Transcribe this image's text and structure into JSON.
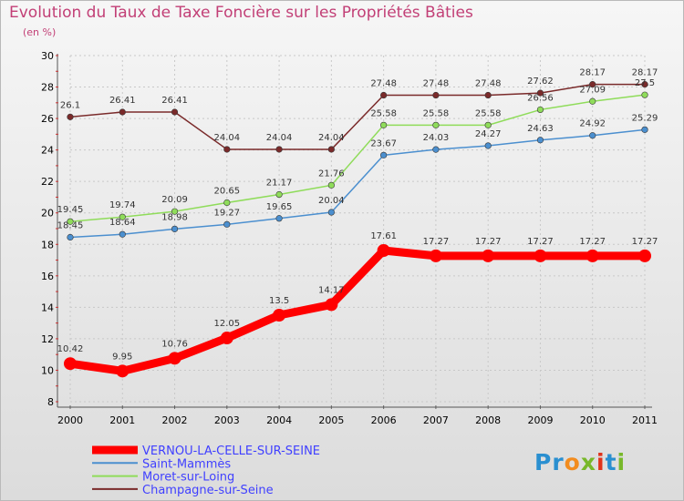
{
  "title": "Evolution du Taux de Taxe Foncière sur les Propriétés Bâties",
  "unit": "(en %)",
  "logo": "Proxiti",
  "chart_data": {
    "type": "line",
    "title": "Evolution du Taux de Taxe Foncière sur les Propriétés Bâties",
    "ylabel": "(en %)",
    "xlabel": "",
    "x": [
      "2000",
      "2001",
      "2002",
      "2003",
      "2004",
      "2005",
      "2006",
      "2007",
      "2008",
      "2009",
      "2010",
      "2011"
    ],
    "ylim": [
      8,
      30
    ],
    "yticks": [
      "8",
      "10",
      "12",
      "14",
      "16",
      "18",
      "20",
      "22",
      "24",
      "26",
      "28",
      "30"
    ],
    "grid": true,
    "legend_position": "bottom-left",
    "series": [
      {
        "name": "VERNOU-LA-CELLE-SUR-SEINE",
        "color": "#ff0000",
        "values": [
          10.42,
          9.95,
          10.76,
          12.05,
          13.5,
          14.17,
          17.61,
          17.27,
          17.27,
          17.27,
          17.27,
          17.27
        ],
        "labels": [
          "10.42",
          "9.95",
          "10.76",
          "12.05",
          "13.5",
          "14.17",
          "17.61",
          "17.27",
          "17.27",
          "17.27",
          "17.27",
          "17.27"
        ]
      },
      {
        "name": "Saint-Mammès",
        "color": "#4b8fcf",
        "values": [
          18.45,
          18.64,
          18.98,
          19.27,
          19.65,
          20.04,
          23.67,
          24.03,
          24.27,
          24.63,
          24.92,
          25.29
        ],
        "labels": [
          "18.45",
          "18.64",
          "18.98",
          "19.27",
          "19.65",
          "20.04",
          "23.67",
          "24.03",
          "24.27",
          "24.63",
          "24.92",
          "25.29"
        ]
      },
      {
        "name": "Moret-sur-Loing",
        "color": "#8fdc5a",
        "values": [
          19.45,
          19.74,
          20.09,
          20.65,
          21.17,
          21.76,
          25.58,
          25.58,
          25.58,
          26.56,
          27.09,
          27.5
        ],
        "labels": [
          "19.45",
          "19.74",
          "20.09",
          "20.65",
          "21.17",
          "21.76",
          "25.58",
          "25.58",
          "25.58",
          "26.56",
          "27.09",
          "27.5"
        ]
      },
      {
        "name": "Champagne-sur-Seine",
        "color": "#7a2a2a",
        "values": [
          26.1,
          26.41,
          26.41,
          24.04,
          24.04,
          24.04,
          27.48,
          27.48,
          27.48,
          27.62,
          28.17,
          28.17
        ],
        "labels": [
          "26.1",
          "26.41",
          "26.41",
          "24.04",
          "24.04",
          "24.04",
          "27.48",
          "27.48",
          "27.48",
          "27.62",
          "28.17",
          "28.17"
        ]
      }
    ]
  }
}
